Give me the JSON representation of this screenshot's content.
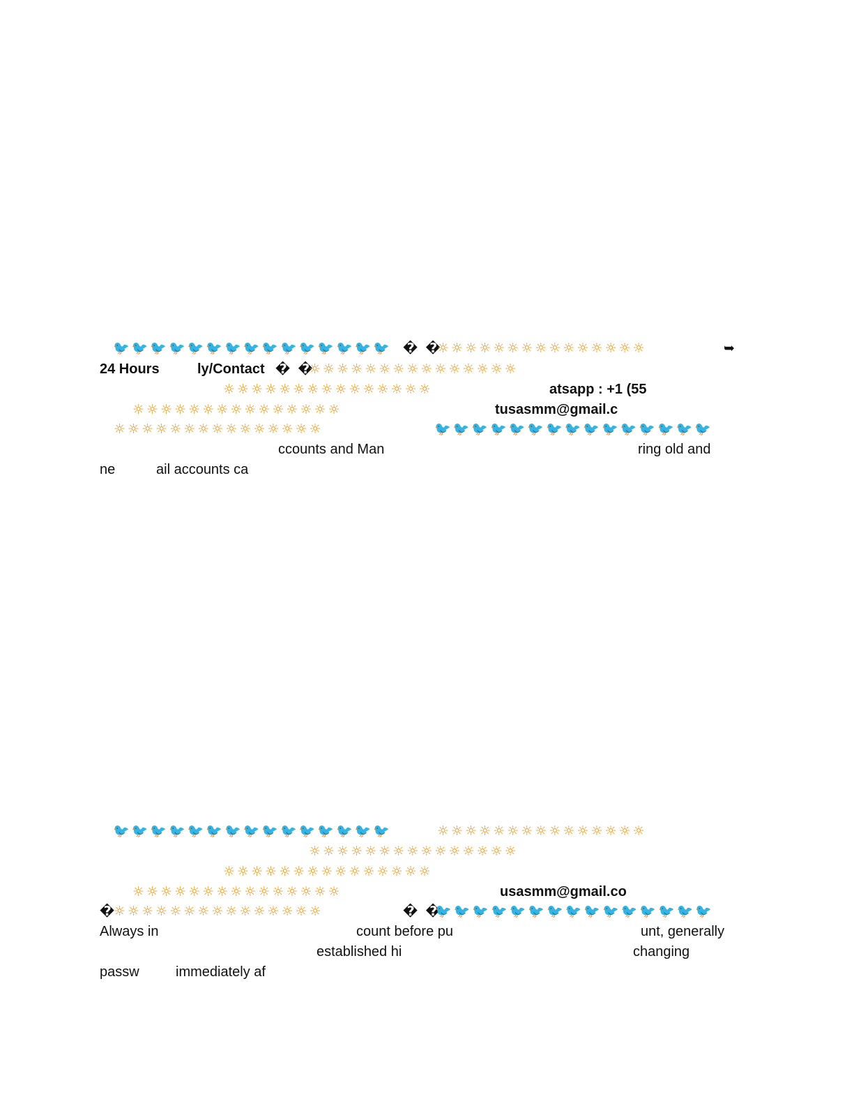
{
  "glyphs": {
    "sun": "☼",
    "bird": "🐦",
    "replacement": "�",
    "arrow": "➥"
  },
  "block1": {
    "text_24_hours": "24 Hours",
    "text_contact": "ly/Contact",
    "text_whatsapp": "atsapp : +1 (55",
    "text_email": "tusasmm@gmail.c",
    "text_accounts": "ccounts and Man",
    "text_ring": "ring old and",
    "text_ne": "ne",
    "text_ail": "ail accounts ca"
  },
  "block2": {
    "text_email": "usasmm@gmail.co",
    "text_always": "Always in",
    "text_count": "count before pu",
    "text_unt": "unt, generally",
    "text_established": "established hi",
    "text_changing": "changing",
    "text_passw": "passw",
    "text_immediately": "immediately af"
  },
  "colors": {
    "sun": "#f29a22",
    "bird": "#3aa3e3",
    "text": "#111111"
  }
}
